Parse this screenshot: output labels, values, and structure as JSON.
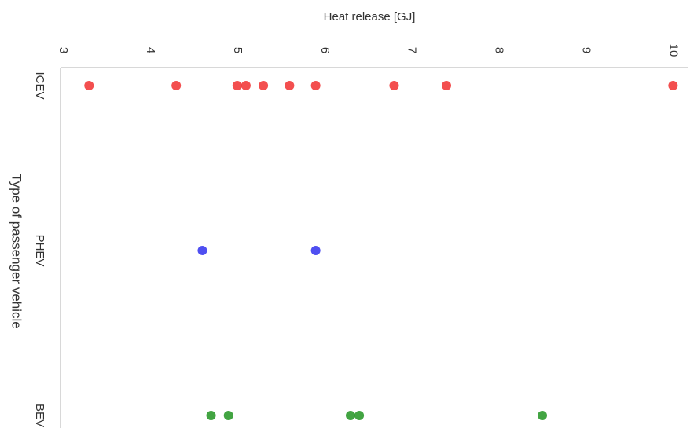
{
  "chart_data": {
    "type": "strip",
    "x_label": "Heat release [GJ]",
    "y_label": "Type of passenger vehicle",
    "categories": [
      "ICEV",
      "PHEV",
      "BEV"
    ],
    "values": [
      [
        3.3,
        4.3,
        5.0,
        5.1,
        5.3,
        5.6,
        5.9,
        6.8,
        7.4,
        10.0
      ],
      [
        4.6,
        5.9
      ],
      [
        4.7,
        4.9,
        6.3,
        6.4,
        8.5
      ]
    ],
    "colors": [
      "#f23c3c",
      "#3c3cf0",
      "#2e9a2e"
    ],
    "xlim": [
      3,
      10.15
    ],
    "xticks": [
      3,
      4,
      5,
      6,
      7,
      8,
      9,
      10
    ],
    "grid": false
  }
}
